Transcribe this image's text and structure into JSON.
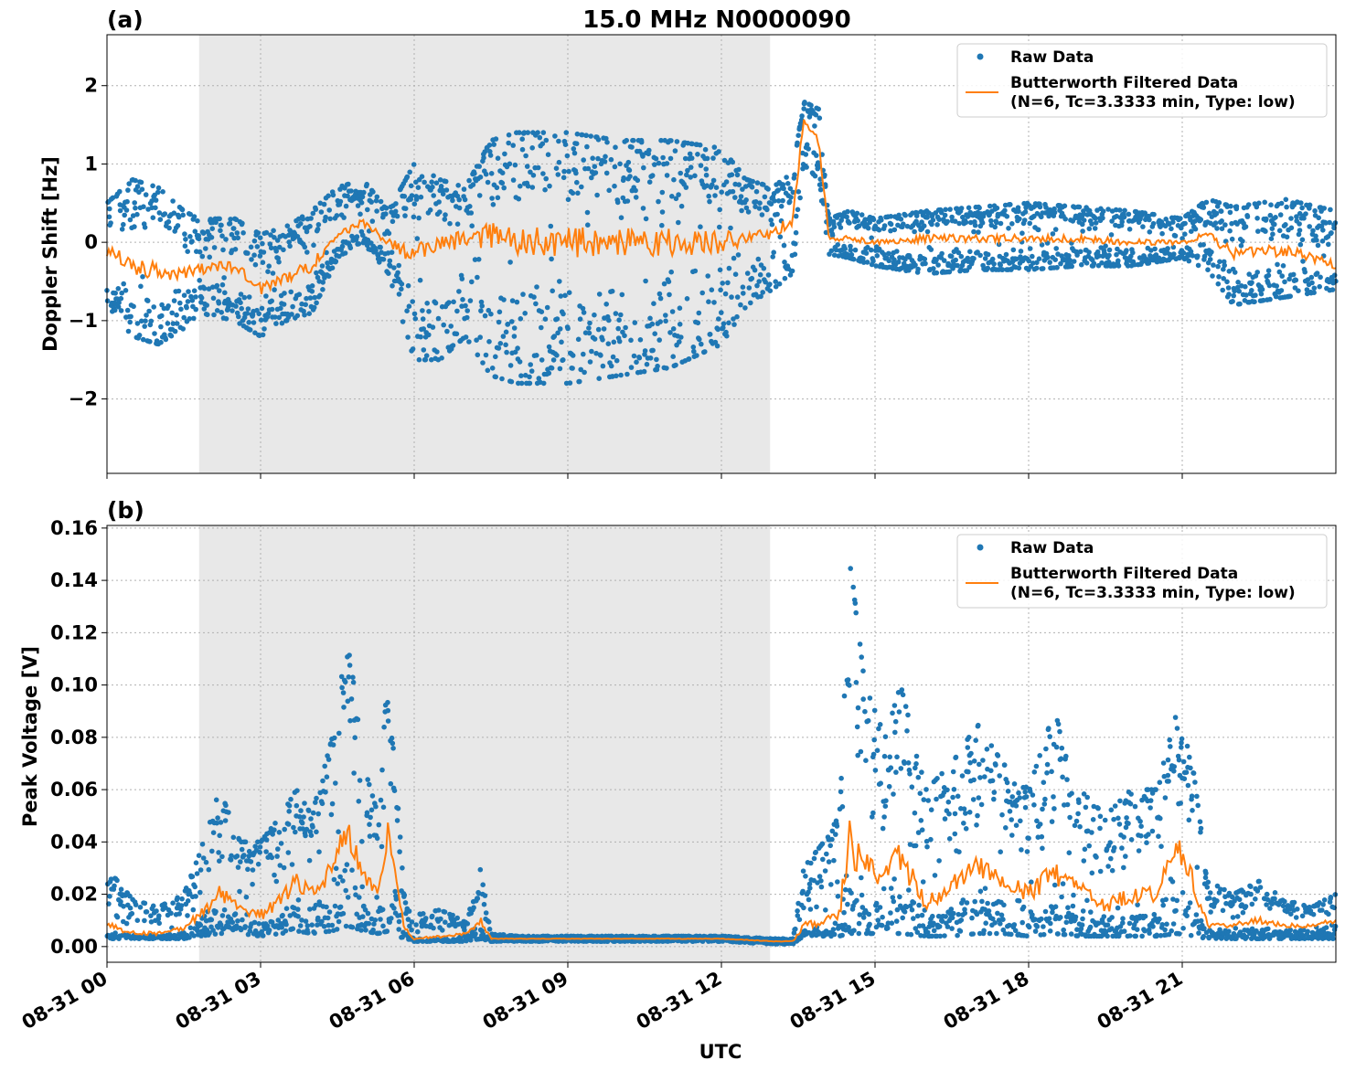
{
  "chart_data": [
    {
      "type": "scatter",
      "panel_label": "(a)",
      "title": "15.0 MHz N0000090",
      "ylabel": "Doppler Shift [Hz]",
      "xlabel": "",
      "x_range_hours": [
        0,
        24
      ],
      "ylim": [
        -2.95,
        2.65
      ],
      "y_ticks": [
        -2,
        -1,
        0,
        1,
        2
      ],
      "y_tick_labels": [
        "−2",
        "−1",
        "0",
        "1",
        "2"
      ],
      "x_ticks_hours": [
        0,
        3,
        6,
        9,
        12,
        15,
        18,
        21
      ],
      "shaded_region_hours": [
        1.8,
        12.95
      ],
      "grid": true,
      "legend_placement": "top-right",
      "series": [
        {
          "name": "Raw Data",
          "kind": "scatter",
          "color": "#1f77b4"
        },
        {
          "name": "Butterworth Filtered Data",
          "legend_sub": "(N=6, Tc=3.3333 min, Type: low)",
          "kind": "line",
          "color": "#ff7f0e"
        }
      ],
      "envelope": {
        "x": [
          0,
          0.5,
          1.0,
          1.5,
          1.8,
          2.5,
          3.0,
          3.5,
          4.0,
          4.5,
          5.0,
          5.5,
          6.0,
          6.5,
          7.0,
          7.5,
          8.0,
          9.0,
          10.0,
          11.0,
          12.0,
          12.5,
          13.0,
          13.4,
          13.6,
          13.9,
          14.1,
          14.5,
          15.0,
          16.0,
          17.0,
          18.0,
          19.0,
          20.0,
          21.0,
          21.5,
          22.0,
          23.0,
          24.0
        ],
        "filtered": [
          -0.1,
          -0.3,
          -0.35,
          -0.4,
          -0.35,
          -0.3,
          -0.6,
          -0.45,
          -0.3,
          0.1,
          0.25,
          0.0,
          -0.15,
          0.0,
          0.05,
          0.1,
          0.0,
          0.0,
          0.0,
          0.0,
          0.0,
          0.05,
          0.1,
          0.3,
          1.55,
          1.3,
          0.05,
          0.05,
          0.0,
          0.05,
          0.05,
          0.05,
          0.05,
          0.0,
          0.0,
          0.1,
          -0.15,
          -0.1,
          -0.3
        ],
        "upper": [
          0.5,
          0.8,
          0.7,
          0.4,
          0.3,
          0.3,
          0.1,
          0.2,
          0.4,
          0.7,
          0.8,
          0.4,
          1.0,
          0.8,
          0.7,
          1.3,
          1.4,
          1.4,
          1.3,
          1.3,
          1.2,
          0.8,
          0.7,
          0.9,
          1.8,
          1.7,
          0.3,
          0.4,
          0.3,
          0.4,
          0.45,
          0.5,
          0.45,
          0.4,
          0.3,
          0.55,
          0.45,
          0.55,
          0.4
        ],
        "lower": [
          -0.8,
          -1.2,
          -1.3,
          -1.1,
          -0.9,
          -1.0,
          -1.2,
          -1.0,
          -0.9,
          -0.2,
          0.0,
          -0.4,
          -1.5,
          -1.5,
          -1.2,
          -1.7,
          -1.8,
          -1.8,
          -1.7,
          -1.6,
          -1.3,
          -0.8,
          -0.6,
          -0.4,
          1.0,
          0.8,
          -0.15,
          -0.2,
          -0.3,
          -0.4,
          -0.35,
          -0.35,
          -0.3,
          -0.3,
          -0.2,
          -0.35,
          -0.8,
          -0.7,
          -0.6
        ]
      }
    },
    {
      "type": "scatter",
      "panel_label": "(b)",
      "title": "",
      "ylabel": "Peak Voltage [V]",
      "xlabel": "UTC",
      "x_range_hours": [
        0,
        24
      ],
      "ylim": [
        -0.006,
        0.161
      ],
      "y_ticks": [
        0.0,
        0.02,
        0.04,
        0.06,
        0.08,
        0.1,
        0.12,
        0.14,
        0.16
      ],
      "y_tick_labels": [
        "0.00",
        "0.02",
        "0.04",
        "0.06",
        "0.08",
        "0.10",
        "0.12",
        "0.14",
        "0.16"
      ],
      "x_ticks_hours": [
        0,
        3,
        6,
        9,
        12,
        15,
        18,
        21
      ],
      "x_tick_labels": [
        "08-31 00",
        "08-31 03",
        "08-31 06",
        "08-31 09",
        "08-31 12",
        "08-31 15",
        "08-31 18",
        "08-31 21"
      ],
      "shaded_region_hours": [
        1.8,
        12.95
      ],
      "grid": true,
      "legend_placement": "top-right",
      "series": [
        {
          "name": "Raw Data",
          "kind": "scatter",
          "color": "#1f77b4"
        },
        {
          "name": "Butterworth Filtered Data",
          "legend_sub": "(N=6, Tc=3.3333 min, Type: low)",
          "kind": "line",
          "color": "#ff7f0e"
        }
      ],
      "envelope": {
        "x": [
          0,
          0.5,
          1.0,
          1.5,
          1.8,
          2.2,
          2.6,
          3.0,
          3.4,
          3.7,
          4.0,
          4.4,
          4.7,
          5.0,
          5.3,
          5.5,
          5.8,
          6.0,
          6.5,
          7.0,
          7.3,
          7.5,
          8.0,
          9.0,
          10.0,
          11.0,
          12.0,
          13.0,
          13.4,
          13.6,
          14.0,
          14.3,
          14.5,
          14.8,
          15.2,
          15.5,
          16.0,
          16.5,
          17.0,
          17.5,
          18.0,
          18.5,
          19.0,
          19.5,
          20.0,
          20.5,
          20.9,
          21.2,
          21.5,
          22.0,
          22.5,
          23.0,
          23.5,
          24.0
        ],
        "filtered": [
          0.008,
          0.005,
          0.005,
          0.007,
          0.012,
          0.02,
          0.015,
          0.012,
          0.018,
          0.025,
          0.02,
          0.03,
          0.045,
          0.028,
          0.022,
          0.045,
          0.008,
          0.003,
          0.004,
          0.005,
          0.01,
          0.003,
          0.003,
          0.003,
          0.003,
          0.003,
          0.003,
          0.002,
          0.002,
          0.008,
          0.01,
          0.012,
          0.04,
          0.03,
          0.028,
          0.035,
          0.015,
          0.025,
          0.03,
          0.025,
          0.02,
          0.028,
          0.022,
          0.015,
          0.02,
          0.02,
          0.04,
          0.025,
          0.008,
          0.008,
          0.01,
          0.008,
          0.008,
          0.01
        ],
        "upper": [
          0.03,
          0.018,
          0.015,
          0.02,
          0.035,
          0.06,
          0.04,
          0.04,
          0.05,
          0.06,
          0.05,
          0.08,
          0.12,
          0.07,
          0.05,
          0.11,
          0.02,
          0.012,
          0.014,
          0.01,
          0.03,
          0.005,
          0.004,
          0.004,
          0.004,
          0.004,
          0.004,
          0.003,
          0.003,
          0.03,
          0.04,
          0.05,
          0.15,
          0.1,
          0.08,
          0.1,
          0.06,
          0.07,
          0.085,
          0.07,
          0.06,
          0.09,
          0.06,
          0.05,
          0.06,
          0.06,
          0.09,
          0.07,
          0.025,
          0.02,
          0.025,
          0.018,
          0.015,
          0.02
        ],
        "lower": [
          0.003,
          0.003,
          0.003,
          0.003,
          0.004,
          0.005,
          0.005,
          0.004,
          0.005,
          0.006,
          0.005,
          0.006,
          0.008,
          0.006,
          0.005,
          0.006,
          0.003,
          0.002,
          0.002,
          0.002,
          0.003,
          0.002,
          0.002,
          0.002,
          0.002,
          0.002,
          0.002,
          0.001,
          0.001,
          0.004,
          0.004,
          0.004,
          0.005,
          0.005,
          0.005,
          0.005,
          0.004,
          0.004,
          0.005,
          0.005,
          0.004,
          0.005,
          0.004,
          0.004,
          0.004,
          0.004,
          0.005,
          0.004,
          0.003,
          0.003,
          0.003,
          0.003,
          0.003,
          0.003
        ]
      }
    }
  ]
}
